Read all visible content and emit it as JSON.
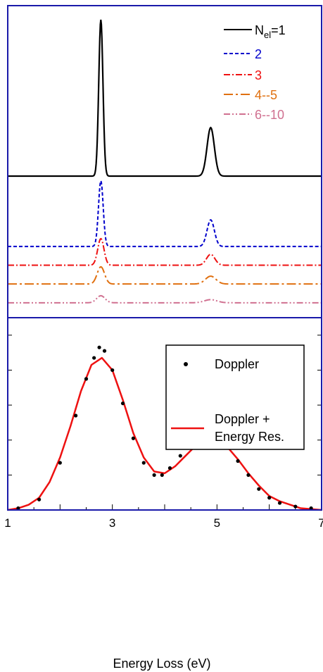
{
  "chart_data": [
    {
      "type": "line",
      "panel": "top",
      "title": "",
      "xlabel": "",
      "ylabel": "",
      "xlim": [
        1,
        7
      ],
      "legend_placement": "top-right",
      "series": [
        {
          "name": "N_el=1",
          "legend_label": "N",
          "legend_sub": "el",
          "legend_suffix": "=1",
          "color": "#000000",
          "dash": "solid",
          "baseline": 0.0,
          "peaks": [
            {
              "center": 2.78,
              "width": 0.04,
              "height": 1.0
            },
            {
              "center": 4.88,
              "width": 0.07,
              "height": 0.31
            }
          ]
        },
        {
          "name": "2",
          "legend_label": "2",
          "color": "#0000cc",
          "dash": "dash",
          "baseline": -0.45,
          "peaks": [
            {
              "center": 2.78,
              "width": 0.045,
              "height": 0.42
            },
            {
              "center": 4.88,
              "width": 0.07,
              "height": 0.17
            }
          ]
        },
        {
          "name": "3",
          "legend_label": "3",
          "color": "#ee1111",
          "dash": "dashdot",
          "baseline": -0.57,
          "peaks": [
            {
              "center": 2.78,
              "width": 0.06,
              "height": 0.17
            },
            {
              "center": 4.88,
              "width": 0.08,
              "height": 0.07
            }
          ]
        },
        {
          "name": "4--5",
          "legend_label": "4--5",
          "color": "#e07010",
          "dash": "longdashdot",
          "baseline": -0.69,
          "peaks": [
            {
              "center": 2.78,
              "width": 0.07,
              "height": 0.11
            },
            {
              "center": 4.88,
              "width": 0.1,
              "height": 0.05
            }
          ]
        },
        {
          "name": "6--10",
          "legend_label": "6--10",
          "color": "#d07090",
          "dash": "dashdotdot",
          "baseline": -0.81,
          "peaks": [
            {
              "center": 2.78,
              "width": 0.08,
              "height": 0.045
            },
            {
              "center": 4.88,
              "width": 0.12,
              "height": 0.02
            }
          ]
        }
      ]
    },
    {
      "type": "scatter",
      "panel": "bottom",
      "title": "",
      "xlabel": "Energy Loss (eV)",
      "ylabel": "",
      "xlim": [
        1,
        7
      ],
      "ylim": [
        0,
        1.1
      ],
      "x_ticks": [
        1,
        3,
        5,
        7
      ],
      "x_tick_labels": [
        "1",
        "3",
        "5",
        "7"
      ],
      "legend_placement": "top-right",
      "series": [
        {
          "name": "Doppler",
          "kind": "points",
          "color": "#000000",
          "x": [
            1.2,
            1.6,
            2.0,
            2.3,
            2.5,
            2.65,
            2.75,
            2.85,
            3.0,
            3.2,
            3.4,
            3.6,
            3.8,
            3.95,
            4.1,
            4.3,
            4.5,
            4.7,
            4.85,
            5.0,
            5.2,
            5.4,
            5.6,
            5.8,
            6.0,
            6.2,
            6.5,
            6.8
          ],
          "y": [
            0.01,
            0.06,
            0.27,
            0.54,
            0.75,
            0.87,
            0.93,
            0.91,
            0.8,
            0.61,
            0.41,
            0.27,
            0.2,
            0.2,
            0.24,
            0.31,
            0.37,
            0.41,
            0.42,
            0.41,
            0.36,
            0.28,
            0.2,
            0.12,
            0.07,
            0.04,
            0.02,
            0.01
          ]
        },
        {
          "name": "Doppler + Energy Res.",
          "legend_lines": [
            "Doppler +",
            "Energy Res."
          ],
          "kind": "line",
          "color": "#ee1111",
          "x": [
            1.0,
            1.2,
            1.4,
            1.6,
            1.8,
            2.0,
            2.2,
            2.4,
            2.6,
            2.8,
            3.0,
            3.2,
            3.4,
            3.6,
            3.8,
            4.0,
            4.2,
            4.4,
            4.6,
            4.8,
            5.0,
            5.2,
            5.4,
            5.6,
            5.8,
            6.0,
            6.2,
            6.4,
            6.6,
            6.8,
            7.0
          ],
          "y": [
            0.0,
            0.01,
            0.03,
            0.07,
            0.16,
            0.3,
            0.48,
            0.68,
            0.83,
            0.87,
            0.8,
            0.63,
            0.44,
            0.3,
            0.22,
            0.21,
            0.25,
            0.31,
            0.37,
            0.4,
            0.4,
            0.36,
            0.29,
            0.21,
            0.14,
            0.08,
            0.05,
            0.03,
            0.01,
            0.005,
            0.0
          ]
        }
      ]
    }
  ]
}
